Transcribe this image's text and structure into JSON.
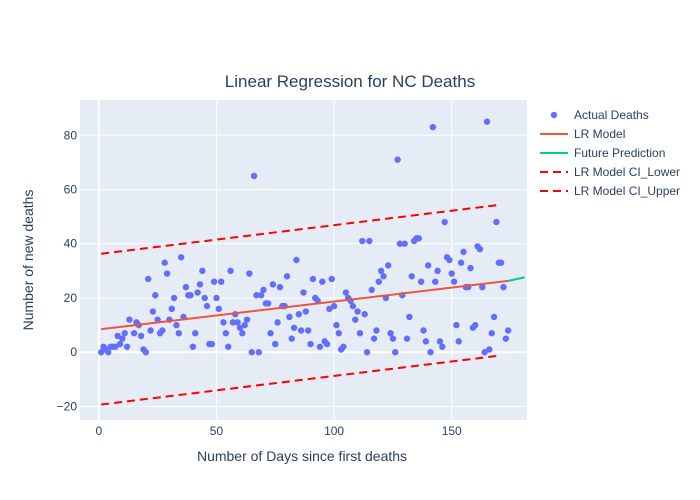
{
  "chart_data": {
    "type": "scatter",
    "title": "Linear Regression for NC Deaths",
    "xlabel": "Number of Days since first deaths",
    "ylabel": "Number of new deaths",
    "xlim": [
      -8,
      182
    ],
    "ylim": [
      -25,
      93
    ],
    "xticks": [
      0,
      50,
      100,
      150
    ],
    "yticks": [
      -20,
      0,
      20,
      40,
      60,
      80
    ],
    "grid": true,
    "legend_position": "right",
    "colors": {
      "plot_background": "#e5ecf6",
      "grid": "#ffffff",
      "actual": "#636efa",
      "lr_model": "#ef553b",
      "future": "#00cc96",
      "ci": "#ff0000"
    },
    "series": [
      {
        "name": "Actual Deaths",
        "kind": "markers",
        "points": [
          [
            1,
            0
          ],
          [
            2,
            2
          ],
          [
            3,
            1
          ],
          [
            4,
            0
          ],
          [
            5,
            2
          ],
          [
            6,
            2
          ],
          [
            7,
            2
          ],
          [
            8,
            6
          ],
          [
            9,
            3
          ],
          [
            10,
            5
          ],
          [
            11,
            7
          ],
          [
            12,
            2
          ],
          [
            13,
            12
          ],
          [
            15,
            7
          ],
          [
            16,
            11
          ],
          [
            17,
            10
          ],
          [
            18,
            6
          ],
          [
            19,
            1
          ],
          [
            20,
            0
          ],
          [
            21,
            27
          ],
          [
            22,
            8
          ],
          [
            23,
            15
          ],
          [
            24,
            21
          ],
          [
            25,
            12
          ],
          [
            26,
            7
          ],
          [
            27,
            8
          ],
          [
            28,
            33
          ],
          [
            29,
            29
          ],
          [
            30,
            12
          ],
          [
            31,
            16
          ],
          [
            32,
            20
          ],
          [
            33,
            10
          ],
          [
            34,
            7
          ],
          [
            35,
            35
          ],
          [
            36,
            13
          ],
          [
            37,
            24
          ],
          [
            38,
            21
          ],
          [
            39,
            21
          ],
          [
            40,
            2
          ],
          [
            41,
            7
          ],
          [
            42,
            22
          ],
          [
            43,
            25
          ],
          [
            44,
            30
          ],
          [
            45,
            20
          ],
          [
            46,
            17
          ],
          [
            47,
            3
          ],
          [
            48,
            3
          ],
          [
            49,
            26
          ],
          [
            50,
            20
          ],
          [
            51,
            16
          ],
          [
            52,
            26
          ],
          [
            53,
            11
          ],
          [
            54,
            7
          ],
          [
            55,
            2
          ],
          [
            56,
            30
          ],
          [
            57,
            11
          ],
          [
            58,
            14
          ],
          [
            59,
            11
          ],
          [
            60,
            9
          ],
          [
            61,
            7
          ],
          [
            62,
            10
          ],
          [
            63,
            12
          ],
          [
            64,
            29
          ],
          [
            65,
            0
          ],
          [
            66,
            65
          ],
          [
            67,
            21
          ],
          [
            68,
            0
          ],
          [
            69,
            21
          ],
          [
            70,
            23
          ],
          [
            71,
            18
          ],
          [
            72,
            18
          ],
          [
            73,
            7
          ],
          [
            74,
            25
          ],
          [
            75,
            3
          ],
          [
            76,
            11
          ],
          [
            77,
            24
          ],
          [
            78,
            17
          ],
          [
            79,
            17
          ],
          [
            80,
            28
          ],
          [
            81,
            13
          ],
          [
            82,
            5
          ],
          [
            83,
            9
          ],
          [
            84,
            34
          ],
          [
            85,
            14
          ],
          [
            86,
            8
          ],
          [
            87,
            22
          ],
          [
            88,
            15
          ],
          [
            89,
            8
          ],
          [
            90,
            3
          ],
          [
            91,
            27
          ],
          [
            92,
            20
          ],
          [
            93,
            19
          ],
          [
            94,
            2
          ],
          [
            95,
            26
          ],
          [
            96,
            4
          ],
          [
            97,
            3
          ],
          [
            98,
            16
          ],
          [
            99,
            27
          ],
          [
            100,
            17
          ],
          [
            101,
            10
          ],
          [
            102,
            7
          ],
          [
            103,
            1
          ],
          [
            104,
            2
          ],
          [
            105,
            22
          ],
          [
            106,
            20
          ],
          [
            107,
            19
          ],
          [
            108,
            17
          ],
          [
            109,
            12
          ],
          [
            110,
            15
          ],
          [
            111,
            7
          ],
          [
            112,
            41
          ],
          [
            113,
            14
          ],
          [
            114,
            0
          ],
          [
            115,
            41
          ],
          [
            116,
            23
          ],
          [
            117,
            5
          ],
          [
            118,
            8
          ],
          [
            119,
            26
          ],
          [
            120,
            30
          ],
          [
            121,
            28
          ],
          [
            122,
            20
          ],
          [
            123,
            32
          ],
          [
            124,
            7
          ],
          [
            125,
            5
          ],
          [
            126,
            0
          ],
          [
            127,
            71
          ],
          [
            128,
            40
          ],
          [
            129,
            21
          ],
          [
            130,
            40
          ],
          [
            131,
            5
          ],
          [
            132,
            13
          ],
          [
            133,
            28
          ],
          [
            134,
            41
          ],
          [
            135,
            42
          ],
          [
            136,
            42
          ],
          [
            137,
            26
          ],
          [
            138,
            8
          ],
          [
            139,
            4
          ],
          [
            140,
            32
          ],
          [
            141,
            0
          ],
          [
            142,
            83
          ],
          [
            143,
            26
          ],
          [
            144,
            30
          ],
          [
            145,
            4
          ],
          [
            146,
            2
          ],
          [
            147,
            48
          ],
          [
            148,
            35
          ],
          [
            149,
            34
          ],
          [
            150,
            29
          ],
          [
            151,
            26
          ],
          [
            152,
            10
          ],
          [
            153,
            4
          ],
          [
            154,
            33
          ],
          [
            155,
            37
          ],
          [
            156,
            24
          ],
          [
            157,
            24
          ],
          [
            158,
            31
          ],
          [
            159,
            9
          ],
          [
            160,
            10
          ],
          [
            161,
            39
          ],
          [
            162,
            38
          ],
          [
            163,
            24
          ],
          [
            164,
            0
          ],
          [
            165,
            85
          ],
          [
            166,
            1
          ],
          [
            167,
            7
          ],
          [
            168,
            13
          ],
          [
            169,
            48
          ],
          [
            170,
            33
          ],
          [
            171,
            33
          ],
          [
            172,
            24
          ],
          [
            173,
            5
          ],
          [
            174,
            8
          ]
        ]
      },
      {
        "name": "LR Model",
        "kind": "line",
        "points": [
          [
            1,
            8.5
          ],
          [
            174,
            26.3
          ]
        ]
      },
      {
        "name": "Future Prediction",
        "kind": "line",
        "points": [
          [
            174,
            26.3
          ],
          [
            181,
            27.6
          ]
        ]
      },
      {
        "name": "LR Model CI_Lower",
        "kind": "dashed",
        "points": [
          [
            1,
            -19.3
          ],
          [
            169,
            -1.4
          ]
        ]
      },
      {
        "name": "LR Model CI_Upper",
        "kind": "dashed",
        "points": [
          [
            1,
            36.3
          ],
          [
            169,
            54.2
          ]
        ]
      }
    ]
  }
}
